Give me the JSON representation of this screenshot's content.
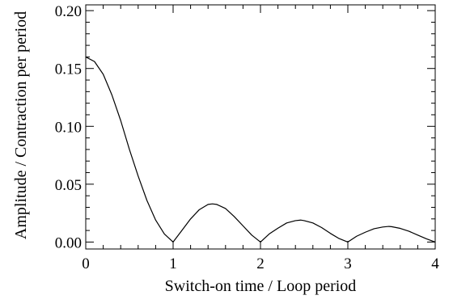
{
  "chart_data": {
    "type": "line",
    "title": "",
    "xlabel": "Switch-on time / Loop period",
    "ylabel": "Amplitude / Contraction per period",
    "xlim": [
      0,
      4
    ],
    "ylim": [
      -0.006,
      0.205
    ],
    "x_ticks": [
      {
        "value": 0,
        "label": "0"
      },
      {
        "value": 1,
        "label": "1"
      },
      {
        "value": 2,
        "label": "2"
      },
      {
        "value": 3,
        "label": "3"
      },
      {
        "value": 4,
        "label": "4"
      }
    ],
    "y_ticks": [
      {
        "value": 0.0,
        "label": "0.00"
      },
      {
        "value": 0.05,
        "label": "0.05"
      },
      {
        "value": 0.1,
        "label": "0.10"
      },
      {
        "value": 0.15,
        "label": "0.15"
      },
      {
        "value": 0.2,
        "label": "0.20"
      }
    ],
    "grid": false,
    "legend": "none",
    "series": [
      {
        "color": "#000000",
        "x": [
          0,
          0.1,
          0.2,
          0.3,
          0.4,
          0.5,
          0.6,
          0.7,
          0.8,
          0.9,
          1.0,
          1.1,
          1.2,
          1.3,
          1.4,
          1.45,
          1.5,
          1.6,
          1.7,
          1.8,
          1.9,
          2.0,
          2.1,
          2.2,
          2.3,
          2.4,
          2.46,
          2.5,
          2.6,
          2.7,
          2.8,
          2.9,
          3.0,
          3.1,
          3.2,
          3.3,
          3.4,
          3.47,
          3.5,
          3.6,
          3.7,
          3.8,
          3.9,
          4.0
        ],
        "y": [
          0.16,
          0.156,
          0.145,
          0.127,
          0.105,
          0.08,
          0.057,
          0.036,
          0.019,
          0.007,
          0.0,
          0.01,
          0.02,
          0.028,
          0.0325,
          0.033,
          0.0325,
          0.029,
          0.022,
          0.014,
          0.006,
          0.0,
          0.007,
          0.012,
          0.0165,
          0.0185,
          0.019,
          0.0185,
          0.0165,
          0.0125,
          0.0075,
          0.003,
          0.0,
          0.005,
          0.0085,
          0.0115,
          0.013,
          0.0135,
          0.0133,
          0.0118,
          0.0093,
          0.006,
          0.0028,
          0.0
        ]
      }
    ]
  }
}
